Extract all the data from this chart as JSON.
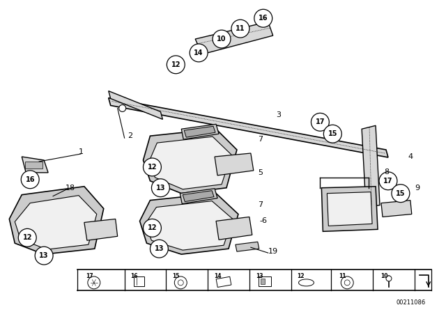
{
  "bg_color": "#ffffff",
  "part_number": "00211086",
  "fig_width": 6.4,
  "fig_height": 4.48,
  "dpi": 100,
  "line_color": "#000000"
}
